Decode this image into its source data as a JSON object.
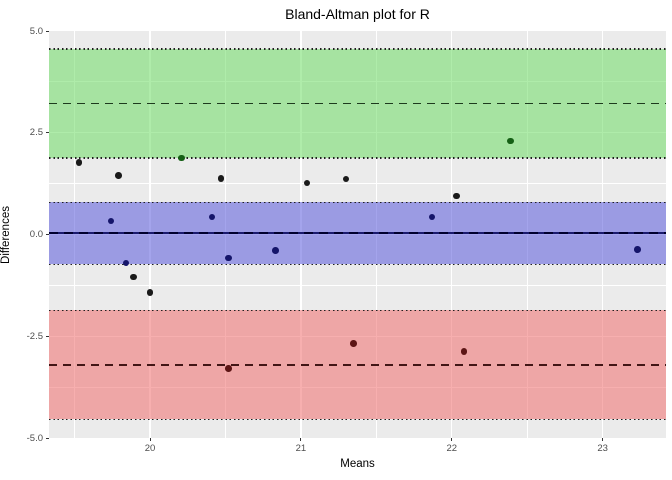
{
  "chart_data": {
    "type": "scatter",
    "title": "Bland-Altman plot for R",
    "xlabel": "Means",
    "ylabel": "Differences",
    "xlim": [
      19.33,
      23.42
    ],
    "ylim": [
      -5.0,
      5.0
    ],
    "x_ticks": [
      {
        "value": 20,
        "label": "20"
      },
      {
        "value": 21,
        "label": "21"
      },
      {
        "value": 22,
        "label": "22"
      },
      {
        "value": 23,
        "label": "23"
      }
    ],
    "y_ticks": [
      {
        "value": 5.0,
        "label": "5.0"
      },
      {
        "value": 2.5,
        "label": "2.5"
      },
      {
        "value": 0.0,
        "label": "0.0"
      },
      {
        "value": -2.5,
        "label": "-2.5"
      },
      {
        "value": -5.0,
        "label": "-5.0"
      }
    ],
    "x_minor_ticks": [
      19.5,
      20.5,
      21.5,
      22.5
    ],
    "y_minor_ticks": [
      3.75,
      1.25,
      -1.25,
      -3.75
    ],
    "grid": true,
    "bias": 0.03,
    "bias_ci": [
      -0.73,
      0.79
    ],
    "upper_loa": 3.22,
    "upper_loa_ci": [
      1.88,
      4.56
    ],
    "lower_loa": -3.2,
    "lower_loa_ci": [
      -4.54,
      -1.86
    ],
    "points": [
      {
        "x": 19.53,
        "y": 1.77,
        "zone": "none"
      },
      {
        "x": 19.79,
        "y": 1.45,
        "zone": "none"
      },
      {
        "x": 19.74,
        "y": 0.33,
        "zone": "blue"
      },
      {
        "x": 19.84,
        "y": -0.7,
        "zone": "blue"
      },
      {
        "x": 19.89,
        "y": -1.04,
        "zone": "none"
      },
      {
        "x": 20.0,
        "y": -1.43,
        "zone": "none"
      },
      {
        "x": 20.21,
        "y": 1.88,
        "zone": "green"
      },
      {
        "x": 20.41,
        "y": 0.43,
        "zone": "blue"
      },
      {
        "x": 20.47,
        "y": 1.37,
        "zone": "none"
      },
      {
        "x": 20.52,
        "y": -0.58,
        "zone": "blue"
      },
      {
        "x": 20.52,
        "y": -3.29,
        "zone": "red"
      },
      {
        "x": 20.83,
        "y": -0.4,
        "zone": "blue"
      },
      {
        "x": 21.04,
        "y": 1.27,
        "zone": "none"
      },
      {
        "x": 21.3,
        "y": 1.36,
        "zone": "none"
      },
      {
        "x": 21.35,
        "y": -2.68,
        "zone": "red"
      },
      {
        "x": 21.87,
        "y": 0.43,
        "zone": "blue"
      },
      {
        "x": 22.03,
        "y": 0.95,
        "zone": "none"
      },
      {
        "x": 22.08,
        "y": -2.87,
        "zone": "red"
      },
      {
        "x": 22.39,
        "y": 2.3,
        "zone": "green"
      },
      {
        "x": 23.23,
        "y": -0.37,
        "zone": "blue"
      }
    ],
    "colors": {
      "panel_background": "#EBEBEB",
      "gridline": "#FFFFFF",
      "upper_band": "rgba(110,220,100,0.55)",
      "bias_band": "rgba(90,90,220,0.55)",
      "lower_band": "rgba(240,110,110,0.55)",
      "upper_loa_line": "#1D3A1D",
      "lower_loa_line": "#421616",
      "bias_line": "#1A1A6E",
      "bias_line_dash": "#00002E",
      "ci_dotted_line": "#1F1F1F",
      "point_none": "#1A1A1A",
      "point_green": "#156015",
      "point_blue": "#15156A",
      "point_red": "#5C1515"
    },
    "legend": null
  }
}
